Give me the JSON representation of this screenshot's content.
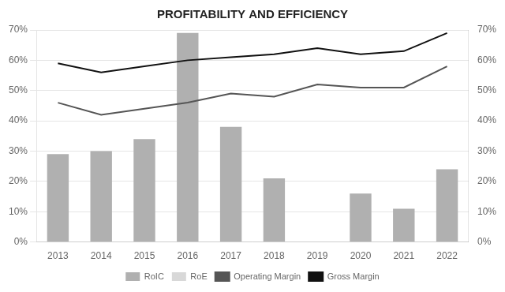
{
  "chart_data": {
    "type": "bar",
    "title": "PROFITABILITY AND EFFICIENCY",
    "categories": [
      "2013",
      "2014",
      "2015",
      "2016",
      "2017",
      "2018",
      "2019",
      "2020",
      "2021",
      "2022"
    ],
    "series": [
      {
        "name": "RoIC",
        "type": "bar",
        "color": "#b0b0b0",
        "values": [
          0.29,
          0.3,
          0.34,
          0.69,
          0.38,
          0.21,
          0.0,
          0.16,
          0.11,
          0.24
        ]
      },
      {
        "name": "RoE",
        "type": "bar",
        "color": "#d8d8d8",
        "values": [
          0.0,
          0.0,
          0.0,
          0.0,
          0.0,
          0.0,
          0.0,
          0.0,
          0.0,
          0.0
        ]
      },
      {
        "name": "Operating Margin",
        "type": "line",
        "axis": "y2",
        "color": "#555555",
        "values": [
          0.46,
          0.42,
          0.44,
          0.46,
          0.49,
          0.48,
          0.52,
          0.51,
          0.51,
          0.58
        ]
      },
      {
        "name": "Gross Margin",
        "type": "line",
        "axis": "y2",
        "color": "#111111",
        "values": [
          0.59,
          0.56,
          0.58,
          0.6,
          0.61,
          0.62,
          0.64,
          0.62,
          0.63,
          0.69
        ]
      }
    ],
    "ylim": [
      0.0,
      0.7
    ],
    "yticks": [
      {
        "value": 0.0,
        "label": "0%"
      },
      {
        "value": 0.1,
        "label": "10%"
      },
      {
        "value": 0.2,
        "label": "20%"
      },
      {
        "value": 0.3,
        "label": "30%"
      },
      {
        "value": 0.4,
        "label": "40%"
      },
      {
        "value": 0.5,
        "label": "50%"
      },
      {
        "value": 0.6,
        "label": "60%"
      },
      {
        "value": 0.7,
        "label": "70%"
      }
    ],
    "y2lim": [
      0.0,
      0.7
    ],
    "y2ticks": [
      {
        "value": 0.0,
        "label": "0%"
      },
      {
        "value": 0.1,
        "label": "10%"
      },
      {
        "value": 0.2,
        "label": "20%"
      },
      {
        "value": 0.3,
        "label": "30%"
      },
      {
        "value": 0.4,
        "label": "40%"
      },
      {
        "value": 0.5,
        "label": "50%"
      },
      {
        "value": 0.6,
        "label": "60%"
      },
      {
        "value": 0.7,
        "label": "70%"
      }
    ],
    "grid": true,
    "legend": "bottom"
  }
}
